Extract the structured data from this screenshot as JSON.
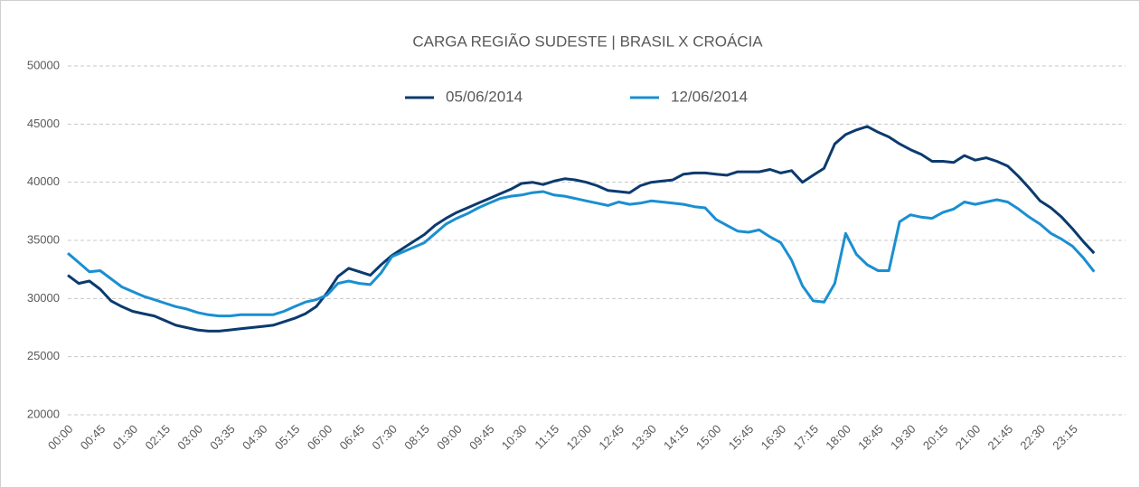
{
  "chart_data": {
    "type": "line",
    "title": "CARGA REGIÃO SUDESTE | BRASIL X CROÁCIA",
    "categories": [
      "00:00",
      null,
      null,
      "00:45",
      null,
      null,
      "01:30",
      null,
      null,
      "02:15",
      null,
      null,
      "03:00",
      null,
      null,
      "03:35",
      null,
      null,
      "04:30",
      null,
      null,
      "05:15",
      null,
      null,
      "06:00",
      null,
      null,
      "06:45",
      null,
      null,
      "07:30",
      null,
      null,
      "08:15",
      null,
      null,
      "09:00",
      null,
      null,
      "09:45",
      null,
      null,
      "10:30",
      null,
      null,
      "11:15",
      null,
      null,
      "12:00",
      null,
      null,
      "12:45",
      null,
      null,
      "13:30",
      null,
      null,
      "14:15",
      null,
      null,
      "15:00",
      null,
      null,
      "15:45",
      null,
      null,
      "16:30",
      null,
      null,
      "17:15",
      null,
      null,
      "18:00",
      null,
      null,
      "18:45",
      null,
      null,
      "19:30",
      null,
      null,
      "20:15",
      null,
      null,
      "21:00",
      null,
      null,
      "21:45",
      null,
      null,
      "22:30",
      null,
      null,
      "23:15",
      null,
      null
    ],
    "series": [
      {
        "name": "05/06/2014",
        "color": "#0b3a6e",
        "values": [
          32000,
          31300,
          31500,
          30800,
          29800,
          29300,
          28900,
          28700,
          28500,
          28100,
          27700,
          27500,
          27300,
          27200,
          27200,
          27300,
          27400,
          27500,
          27600,
          27700,
          28000,
          28300,
          28700,
          29300,
          30500,
          31900,
          32600,
          32300,
          32000,
          32900,
          33700,
          34300,
          34900,
          35500,
          36300,
          36900,
          37400,
          37800,
          38200,
          38600,
          39000,
          39400,
          39900,
          40000,
          39800,
          40100,
          40300,
          40200,
          40000,
          39700,
          39300,
          39200,
          39100,
          39700,
          40000,
          40100,
          40200,
          40700,
          40800,
          40800,
          40700,
          40600,
          40900,
          40900,
          40900,
          41100,
          40800,
          41000,
          40000,
          40600,
          41200,
          43300,
          44100,
          44500,
          44800,
          44300,
          43900,
          43300,
          42800,
          42400,
          41800,
          41800,
          41700,
          42300,
          41900,
          42100,
          41800,
          41400,
          40500,
          39500,
          38400,
          37800,
          37000,
          36000,
          34900,
          33900
        ]
      },
      {
        "name": "12/06/2014",
        "color": "#1a8fd1",
        "values": [
          33900,
          33100,
          32300,
          32400,
          31700,
          31000,
          30600,
          30200,
          29900,
          29600,
          29300,
          29100,
          28800,
          28600,
          28500,
          28500,
          28600,
          28600,
          28600,
          28600,
          28900,
          29300,
          29700,
          29900,
          30300,
          31300,
          31500,
          31300,
          31200,
          32200,
          33600,
          34000,
          34400,
          34800,
          35600,
          36400,
          36900,
          37300,
          37800,
          38200,
          38600,
          38800,
          38900,
          39100,
          39200,
          38900,
          38800,
          38600,
          38400,
          38200,
          38000,
          38300,
          38100,
          38200,
          38400,
          38300,
          38200,
          38100,
          37900,
          37800,
          36800,
          36300,
          35800,
          35700,
          35900,
          35300,
          34800,
          33300,
          31100,
          29800,
          29700,
          31300,
          35600,
          33800,
          32900,
          32400,
          32400,
          36600,
          37200,
          37000,
          36900,
          37400,
          37700,
          38300,
          38100,
          38300,
          38500,
          38300,
          37700,
          37000,
          36400,
          35600,
          35100,
          34500,
          33500,
          32300
        ]
      }
    ],
    "ylim": [
      20000,
      50000
    ],
    "yticks": [
      20000,
      25000,
      30000,
      35000,
      40000,
      45000,
      50000
    ],
    "grid": true,
    "legend": "top"
  }
}
